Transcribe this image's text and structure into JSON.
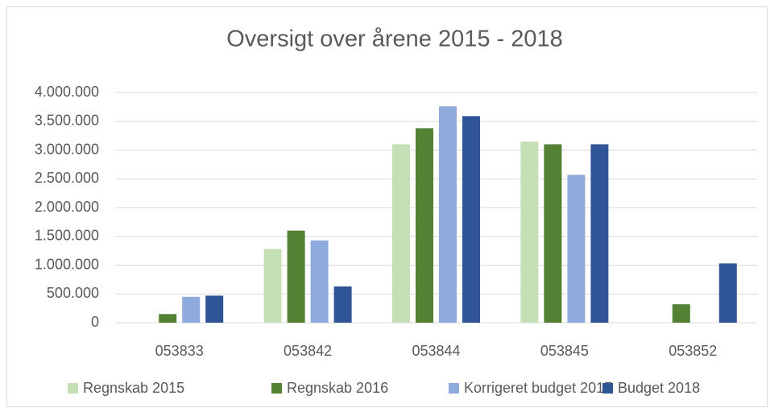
{
  "chart_data": {
    "type": "bar",
    "title": "Oversigt over årene 2015 - 2018",
    "categories": [
      "053833",
      "053842",
      "053844",
      "053845",
      "053852"
    ],
    "series": [
      {
        "name": "Regnskab 2015",
        "color": "#c5e0b4",
        "values": [
          0,
          1280000,
          3100000,
          3150000,
          0
        ]
      },
      {
        "name": "Regnskab 2016",
        "color": "#548235",
        "values": [
          150000,
          1600000,
          3380000,
          3100000,
          320000
        ]
      },
      {
        "name": "Korrigeret budget 2017",
        "color": "#8faadc",
        "values": [
          450000,
          1430000,
          3760000,
          2570000,
          0
        ]
      },
      {
        "name": "Budget 2018",
        "color": "#2f5597",
        "values": [
          470000,
          630000,
          3590000,
          3100000,
          1030000
        ]
      }
    ],
    "ylim": [
      0,
      4000000
    ],
    "yticks": [
      0,
      {
        "value": 500000,
        "label": "500.000"
      },
      {
        "value": 1000000,
        "label": "1.000.000"
      },
      {
        "value": 1500000,
        "label": "1.500.000"
      },
      {
        "value": 2000000,
        "label": "2.000.000"
      },
      {
        "value": 2500000,
        "label": "2.500.000"
      },
      {
        "value": 3000000,
        "label": "3.000.000"
      },
      {
        "value": 3500000,
        "label": "3.500.000"
      },
      {
        "value": 4000000,
        "label": "4.000.000"
      }
    ],
    "grid": true,
    "legend": "bottom"
  }
}
